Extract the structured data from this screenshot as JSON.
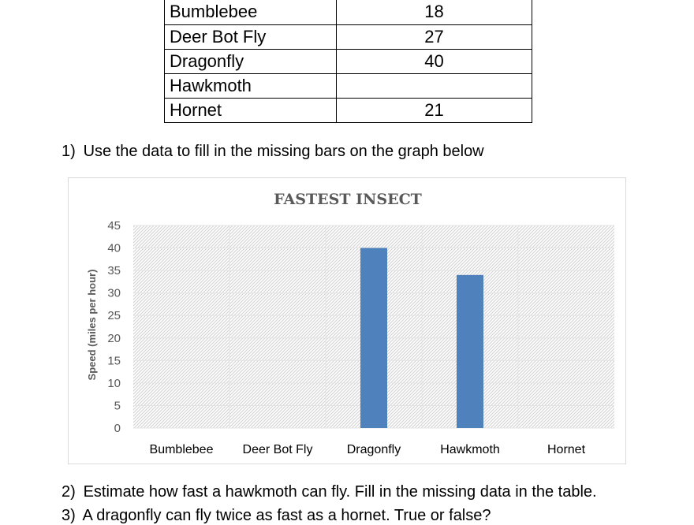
{
  "table": {
    "rows": [
      {
        "insect": "Bumblebee",
        "speed": "18"
      },
      {
        "insect": "Deer Bot Fly",
        "speed": "27"
      },
      {
        "insect": "Dragonfly",
        "speed": "40"
      },
      {
        "insect": "Hawkmoth",
        "speed": ""
      },
      {
        "insect": "Hornet",
        "speed": "21"
      }
    ]
  },
  "questions": [
    {
      "num": "1)",
      "text": "Use the data to fill in the missing bars on the graph below"
    },
    {
      "num": "2)",
      "text": "Estimate how fast a hawkmoth can fly. Fill in the missing data in the table."
    },
    {
      "num": "3)",
      "text": "A dragonfly can fly twice as fast as a hornet. True or false?"
    }
  ],
  "chart_data": {
    "type": "bar",
    "title": "FASTEST INSECT",
    "ylabel": "Speed (miles per hour)",
    "xlabel": "",
    "categories": [
      "Bumblebee",
      "Deer Bot Fly",
      "Dragonfly",
      "Hawkmoth",
      "Hornet"
    ],
    "values": [
      null,
      null,
      40,
      34,
      null
    ],
    "ylim": [
      0,
      45
    ],
    "yticks": [
      "0",
      "5",
      "10",
      "15",
      "20",
      "25",
      "30",
      "35",
      "40",
      "45"
    ],
    "bar_color": "#4f81bd",
    "plot_pattern": "diagonal-hatch",
    "grid": true
  }
}
